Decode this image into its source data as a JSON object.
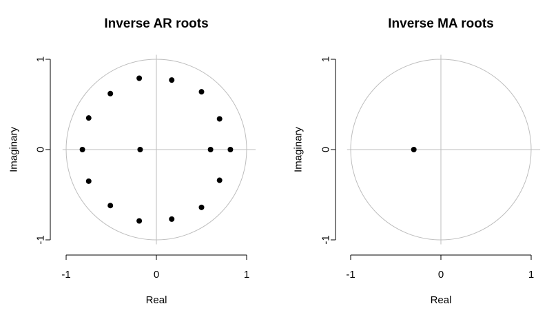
{
  "chart_data": [
    {
      "type": "scatter",
      "title": "Inverse AR roots",
      "xlabel": "Real",
      "ylabel": "Imaginary",
      "xlim": [
        -1,
        1
      ],
      "ylim": [
        -1,
        1
      ],
      "x_ticks": [
        "-1",
        "0",
        "1"
      ],
      "y_ticks": [
        "-1",
        "0",
        "1"
      ],
      "unit_circle": true,
      "points": [
        {
          "x": -0.82,
          "y": 0.0
        },
        {
          "x": 0.82,
          "y": 0.0
        },
        {
          "x": 0.6,
          "y": 0.0
        },
        {
          "x": -0.18,
          "y": 0.0
        },
        {
          "x": -0.75,
          "y": 0.35
        },
        {
          "x": -0.75,
          "y": -0.35
        },
        {
          "x": 0.7,
          "y": 0.34
        },
        {
          "x": 0.7,
          "y": -0.34
        },
        {
          "x": -0.51,
          "y": 0.62
        },
        {
          "x": -0.51,
          "y": -0.62
        },
        {
          "x": 0.5,
          "y": 0.64
        },
        {
          "x": 0.5,
          "y": -0.64
        },
        {
          "x": -0.19,
          "y": 0.79
        },
        {
          "x": -0.19,
          "y": -0.79
        },
        {
          "x": 0.17,
          "y": 0.77
        },
        {
          "x": 0.17,
          "y": -0.77
        }
      ]
    },
    {
      "type": "scatter",
      "title": "Inverse MA roots",
      "xlabel": "Real",
      "ylabel": "Imaginary",
      "xlim": [
        -1,
        1
      ],
      "ylim": [
        -1,
        1
      ],
      "x_ticks": [
        "-1",
        "0",
        "1"
      ],
      "y_ticks": [
        "-1",
        "0",
        "1"
      ],
      "unit_circle": true,
      "points": [
        {
          "x": -0.3,
          "y": 0.0
        }
      ]
    }
  ]
}
